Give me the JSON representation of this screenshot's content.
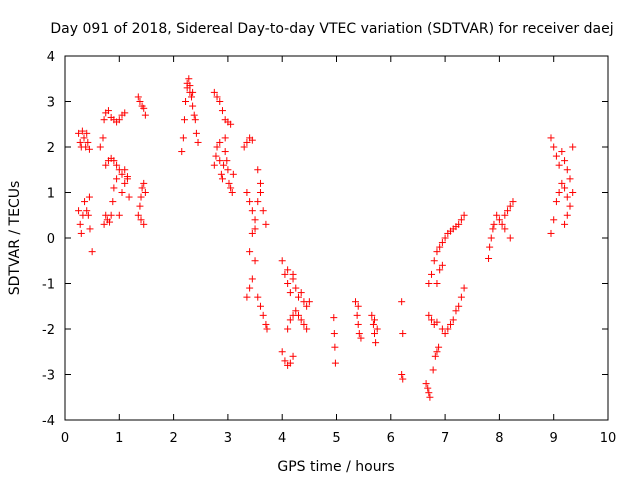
{
  "chart_data": {
    "type": "scatter",
    "title": "Day 091 of 2018, Sidereal Day-to-day VTEC variation (SDTVAR) for receiver daej",
    "xlabel": "GPS time / hours",
    "ylabel": "SDTVAR / TECUs",
    "xlim": [
      0,
      10
    ],
    "ylim": [
      -4,
      4
    ],
    "xticks": [
      "0",
      "1",
      "2",
      "3",
      "4",
      "5",
      "6",
      "7",
      "8",
      "9",
      "10"
    ],
    "yticks": [
      "-4",
      "-3",
      "-2",
      "-1",
      "0",
      "1",
      "2",
      "3",
      "4"
    ],
    "grid": false,
    "marker": "+",
    "marker_color": "#ff0000",
    "series": [
      {
        "points": [
          [
            0.25,
            2.3
          ],
          [
            0.28,
            2.1
          ],
          [
            0.3,
            2.0
          ],
          [
            0.32,
            2.35
          ],
          [
            0.35,
            2.2
          ],
          [
            0.38,
            2.0
          ],
          [
            0.4,
            2.3
          ],
          [
            0.42,
            2.1
          ],
          [
            0.45,
            1.95
          ],
          [
            0.25,
            0.6
          ],
          [
            0.28,
            0.3
          ],
          [
            0.3,
            0.1
          ],
          [
            0.33,
            0.5
          ],
          [
            0.36,
            0.8
          ],
          [
            0.4,
            0.6
          ],
          [
            0.43,
            0.5
          ],
          [
            0.46,
            0.2
          ],
          [
            0.5,
            -0.3
          ],
          [
            0.45,
            0.9
          ],
          [
            0.65,
            2.0
          ],
          [
            0.7,
            2.2
          ],
          [
            0.72,
            2.6
          ],
          [
            0.75,
            2.75
          ],
          [
            0.8,
            2.8
          ],
          [
            0.85,
            2.65
          ],
          [
            0.9,
            2.6
          ],
          [
            0.95,
            2.55
          ],
          [
            1.0,
            2.6
          ],
          [
            1.05,
            2.7
          ],
          [
            1.1,
            2.75
          ],
          [
            0.72,
            0.3
          ],
          [
            0.75,
            0.5
          ],
          [
            0.78,
            0.4
          ],
          [
            0.82,
            0.35
          ],
          [
            0.85,
            0.5
          ],
          [
            0.88,
            0.8
          ],
          [
            0.9,
            1.1
          ],
          [
            0.95,
            1.3
          ],
          [
            1.0,
            0.5
          ],
          [
            1.05,
            1.0
          ],
          [
            1.1,
            1.2
          ],
          [
            1.15,
            1.35
          ],
          [
            1.18,
            0.9
          ],
          [
            0.75,
            1.6
          ],
          [
            0.8,
            1.7
          ],
          [
            0.85,
            1.75
          ],
          [
            0.9,
            1.7
          ],
          [
            0.95,
            1.6
          ],
          [
            1.0,
            1.5
          ],
          [
            1.05,
            1.4
          ],
          [
            1.1,
            1.5
          ],
          [
            1.15,
            1.3
          ],
          [
            1.35,
            3.1
          ],
          [
            1.38,
            3.0
          ],
          [
            1.42,
            2.9
          ],
          [
            1.45,
            2.85
          ],
          [
            1.48,
            2.7
          ],
          [
            1.35,
            0.5
          ],
          [
            1.38,
            0.7
          ],
          [
            1.4,
            0.9
          ],
          [
            1.42,
            1.1
          ],
          [
            1.45,
            1.2
          ],
          [
            1.48,
            1.0
          ],
          [
            1.4,
            0.4
          ],
          [
            1.45,
            0.3
          ],
          [
            2.15,
            1.9
          ],
          [
            2.18,
            2.2
          ],
          [
            2.2,
            2.6
          ],
          [
            2.22,
            3.0
          ],
          [
            2.25,
            3.3
          ],
          [
            2.28,
            3.5
          ],
          [
            2.3,
            3.2
          ],
          [
            2.33,
            3.1
          ],
          [
            2.35,
            2.9
          ],
          [
            2.38,
            2.7
          ],
          [
            2.4,
            2.6
          ],
          [
            2.42,
            2.3
          ],
          [
            2.45,
            2.1
          ],
          [
            2.25,
            3.4
          ],
          [
            2.3,
            3.35
          ],
          [
            2.35,
            3.2
          ],
          [
            2.75,
            3.2
          ],
          [
            2.8,
            3.1
          ],
          [
            2.85,
            3.0
          ],
          [
            2.9,
            2.8
          ],
          [
            2.95,
            2.6
          ],
          [
            3.0,
            2.55
          ],
          [
            3.05,
            2.5
          ],
          [
            2.75,
            1.6
          ],
          [
            2.78,
            1.8
          ],
          [
            2.8,
            2.0
          ],
          [
            2.85,
            1.7
          ],
          [
            2.88,
            1.4
          ],
          [
            2.9,
            1.3
          ],
          [
            2.92,
            1.6
          ],
          [
            2.95,
            1.9
          ],
          [
            2.98,
            1.7
          ],
          [
            3.0,
            1.5
          ],
          [
            3.02,
            1.2
          ],
          [
            3.05,
            1.1
          ],
          [
            3.08,
            1.0
          ],
          [
            3.1,
            1.4
          ],
          [
            2.85,
            2.1
          ],
          [
            2.95,
            2.2
          ],
          [
            3.3,
            2.0
          ],
          [
            3.35,
            2.1
          ],
          [
            3.4,
            2.2
          ],
          [
            3.45,
            2.15
          ],
          [
            3.35,
            1.0
          ],
          [
            3.4,
            0.8
          ],
          [
            3.45,
            0.6
          ],
          [
            3.5,
            0.4
          ],
          [
            3.55,
            0.8
          ],
          [
            3.6,
            1.0
          ],
          [
            3.65,
            0.6
          ],
          [
            3.7,
            0.3
          ],
          [
            3.55,
            1.5
          ],
          [
            3.6,
            1.2
          ],
          [
            3.35,
            -1.3
          ],
          [
            3.4,
            -1.1
          ],
          [
            3.45,
            -0.9
          ],
          [
            3.5,
            -0.5
          ],
          [
            3.55,
            -1.3
          ],
          [
            3.6,
            -1.5
          ],
          [
            3.65,
            -1.7
          ],
          [
            3.7,
            -1.9
          ],
          [
            3.72,
            -2.0
          ],
          [
            3.4,
            -0.3
          ],
          [
            3.45,
            0.1
          ],
          [
            3.5,
            0.2
          ],
          [
            4.0,
            -0.5
          ],
          [
            4.05,
            -0.8
          ],
          [
            4.1,
            -1.0
          ],
          [
            4.15,
            -1.2
          ],
          [
            4.2,
            -0.9
          ],
          [
            4.25,
            -1.1
          ],
          [
            4.3,
            -1.3
          ],
          [
            4.35,
            -1.2
          ],
          [
            4.4,
            -1.4
          ],
          [
            4.45,
            -1.5
          ],
          [
            4.5,
            -1.4
          ],
          [
            4.1,
            -0.7
          ],
          [
            4.2,
            -0.8
          ],
          [
            4.0,
            -2.5
          ],
          [
            4.05,
            -2.7
          ],
          [
            4.1,
            -2.8
          ],
          [
            4.15,
            -2.75
          ],
          [
            4.2,
            -2.6
          ],
          [
            4.1,
            -2.0
          ],
          [
            4.15,
            -1.8
          ],
          [
            4.2,
            -1.7
          ],
          [
            4.25,
            -1.6
          ],
          [
            4.3,
            -1.7
          ],
          [
            4.35,
            -1.8
          ],
          [
            4.4,
            -1.9
          ],
          [
            4.45,
            -2.0
          ],
          [
            4.95,
            -1.75
          ],
          [
            4.96,
            -2.1
          ],
          [
            4.97,
            -2.4
          ],
          [
            4.98,
            -2.75
          ],
          [
            5.35,
            -1.4
          ],
          [
            5.38,
            -1.7
          ],
          [
            5.4,
            -1.9
          ],
          [
            5.42,
            -2.1
          ],
          [
            5.45,
            -2.2
          ],
          [
            5.4,
            -1.5
          ],
          [
            5.65,
            -1.7
          ],
          [
            5.68,
            -1.9
          ],
          [
            5.7,
            -2.1
          ],
          [
            5.72,
            -2.3
          ],
          [
            5.75,
            -2.0
          ],
          [
            5.7,
            -1.8
          ],
          [
            6.2,
            -1.4
          ],
          [
            6.22,
            -2.1
          ],
          [
            6.2,
            -3.0
          ],
          [
            6.22,
            -3.1
          ],
          [
            6.65,
            -3.2
          ],
          [
            6.68,
            -3.3
          ],
          [
            6.7,
            -3.4
          ],
          [
            6.72,
            -3.5
          ],
          [
            6.7,
            -1.7
          ],
          [
            6.75,
            -1.8
          ],
          [
            6.8,
            -1.9
          ],
          [
            6.85,
            -1.85
          ],
          [
            6.78,
            -2.9
          ],
          [
            6.82,
            -2.6
          ],
          [
            6.85,
            -2.5
          ],
          [
            6.88,
            -2.4
          ],
          [
            6.7,
            -1.0
          ],
          [
            6.75,
            -0.8
          ],
          [
            6.8,
            -0.5
          ],
          [
            6.85,
            -0.3
          ],
          [
            6.9,
            -0.2
          ],
          [
            6.95,
            -0.1
          ],
          [
            7.0,
            0.0
          ],
          [
            7.05,
            0.1
          ],
          [
            7.1,
            0.15
          ],
          [
            7.15,
            0.2
          ],
          [
            7.2,
            0.25
          ],
          [
            7.25,
            0.3
          ],
          [
            7.3,
            0.4
          ],
          [
            7.35,
            0.5
          ],
          [
            6.85,
            -1.0
          ],
          [
            6.9,
            -0.7
          ],
          [
            6.95,
            -0.6
          ],
          [
            6.95,
            -2.0
          ],
          [
            7.0,
            -2.1
          ],
          [
            7.05,
            -2.0
          ],
          [
            7.1,
            -1.9
          ],
          [
            7.15,
            -1.8
          ],
          [
            7.2,
            -1.6
          ],
          [
            7.25,
            -1.5
          ],
          [
            7.3,
            -1.3
          ],
          [
            7.35,
            -1.1
          ],
          [
            7.8,
            -0.45
          ],
          [
            7.82,
            -0.2
          ],
          [
            7.85,
            0.0
          ],
          [
            7.88,
            0.2
          ],
          [
            7.9,
            0.3
          ],
          [
            7.95,
            0.5
          ],
          [
            8.0,
            0.4
          ],
          [
            8.05,
            0.3
          ],
          [
            8.1,
            0.5
          ],
          [
            8.15,
            0.6
          ],
          [
            8.2,
            0.7
          ],
          [
            8.25,
            0.8
          ],
          [
            8.1,
            0.2
          ],
          [
            8.2,
            0.0
          ],
          [
            8.95,
            2.2
          ],
          [
            9.0,
            2.0
          ],
          [
            9.05,
            1.8
          ],
          [
            9.1,
            1.6
          ],
          [
            9.15,
            1.9
          ],
          [
            9.2,
            1.7
          ],
          [
            9.25,
            1.5
          ],
          [
            9.3,
            1.3
          ],
          [
            9.35,
            2.0
          ],
          [
            8.95,
            0.1
          ],
          [
            9.0,
            0.4
          ],
          [
            9.05,
            0.8
          ],
          [
            9.1,
            1.0
          ],
          [
            9.15,
            1.2
          ],
          [
            9.2,
            1.1
          ],
          [
            9.25,
            0.9
          ],
          [
            9.3,
            0.7
          ],
          [
            9.35,
            1.0
          ],
          [
            9.2,
            0.3
          ],
          [
            9.25,
            0.5
          ]
        ]
      }
    ]
  }
}
